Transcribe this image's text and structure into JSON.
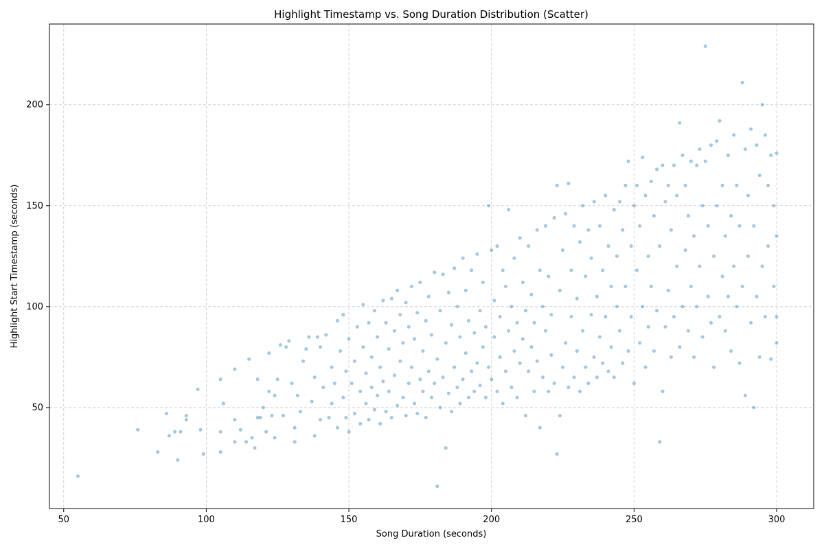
{
  "chart_data": {
    "type": "scatter",
    "title": "Highlight Timestamp vs. Song Duration Distribution (Scatter)",
    "xlabel": "Song Duration (seconds)",
    "ylabel": "Highlight Start Timestamp (seconds)",
    "xlim": [
      45,
      313
    ],
    "ylim": [
      0,
      240
    ],
    "xticks": [
      50,
      100,
      150,
      200,
      250,
      300
    ],
    "yticks": [
      50,
      100,
      150,
      200
    ],
    "grid": true,
    "color": "#1f77b4",
    "points": [
      [
        55,
        16
      ],
      [
        76,
        39
      ],
      [
        83,
        28
      ],
      [
        86,
        47
      ],
      [
        87,
        36
      ],
      [
        89,
        38
      ],
      [
        90,
        24
      ],
      [
        91,
        38
      ],
      [
        93,
        46
      ],
      [
        93,
        44
      ],
      [
        97,
        59
      ],
      [
        98,
        39
      ],
      [
        99,
        27
      ],
      [
        105,
        28
      ],
      [
        105,
        38
      ],
      [
        105,
        64
      ],
      [
        106,
        52
      ],
      [
        110,
        33
      ],
      [
        110,
        44
      ],
      [
        110,
        69
      ],
      [
        112,
        39
      ],
      [
        114,
        33
      ],
      [
        115,
        74
      ],
      [
        116,
        35
      ],
      [
        117,
        30
      ],
      [
        118,
        45
      ],
      [
        118,
        64
      ],
      [
        119,
        45
      ],
      [
        120,
        50
      ],
      [
        121,
        38
      ],
      [
        122,
        58
      ],
      [
        122,
        77
      ],
      [
        123,
        46
      ],
      [
        124,
        35
      ],
      [
        124,
        56
      ],
      [
        125,
        64
      ],
      [
        126,
        81
      ],
      [
        127,
        46
      ],
      [
        128,
        80
      ],
      [
        129,
        83
      ],
      [
        130,
        62
      ],
      [
        131,
        33
      ],
      [
        131,
        40
      ],
      [
        132,
        56
      ],
      [
        133,
        48
      ],
      [
        134,
        73
      ],
      [
        135,
        79
      ],
      [
        136,
        85
      ],
      [
        137,
        53
      ],
      [
        138,
        36
      ],
      [
        138,
        65
      ],
      [
        139,
        85
      ],
      [
        140,
        44
      ],
      [
        140,
        80
      ],
      [
        141,
        60
      ],
      [
        142,
        86
      ],
      [
        143,
        45
      ],
      [
        144,
        52
      ],
      [
        144,
        70
      ],
      [
        145,
        62
      ],
      [
        146,
        40
      ],
      [
        146,
        93
      ],
      [
        147,
        78
      ],
      [
        148,
        55
      ],
      [
        148,
        96
      ],
      [
        149,
        45
      ],
      [
        149,
        68
      ],
      [
        150,
        38
      ],
      [
        150,
        84
      ],
      [
        151,
        62
      ],
      [
        152,
        47
      ],
      [
        152,
        73
      ],
      [
        153,
        90
      ],
      [
        154,
        42
      ],
      [
        154,
        58
      ],
      [
        155,
        80
      ],
      [
        155,
        101
      ],
      [
        156,
        52
      ],
      [
        156,
        67
      ],
      [
        157,
        44
      ],
      [
        157,
        92
      ],
      [
        158,
        60
      ],
      [
        158,
        75
      ],
      [
        159,
        49
      ],
      [
        159,
        98
      ],
      [
        160,
        56
      ],
      [
        160,
        85
      ],
      [
        161,
        42
      ],
      [
        161,
        70
      ],
      [
        162,
        103
      ],
      [
        162,
        63
      ],
      [
        163,
        48
      ],
      [
        163,
        92
      ],
      [
        164,
        58
      ],
      [
        164,
        79
      ],
      [
        165,
        45
      ],
      [
        165,
        104
      ],
      [
        166,
        66
      ],
      [
        166,
        88
      ],
      [
        167,
        51
      ],
      [
        167,
        108
      ],
      [
        168,
        73
      ],
      [
        168,
        96
      ],
      [
        169,
        55
      ],
      [
        169,
        82
      ],
      [
        170,
        46
      ],
      [
        170,
        102
      ],
      [
        171,
        62
      ],
      [
        171,
        90
      ],
      [
        172,
        110
      ],
      [
        172,
        70
      ],
      [
        173,
        52
      ],
      [
        173,
        84
      ],
      [
        174,
        47
      ],
      [
        174,
        97
      ],
      [
        175,
        64
      ],
      [
        175,
        112
      ],
      [
        176,
        58
      ],
      [
        176,
        78
      ],
      [
        177,
        45
      ],
      [
        177,
        93
      ],
      [
        178,
        68
      ],
      [
        178,
        105
      ],
      [
        179,
        55
      ],
      [
        179,
        86
      ],
      [
        180,
        62
      ],
      [
        180,
        117
      ],
      [
        181,
        11
      ],
      [
        181,
        74
      ],
      [
        182,
        50
      ],
      [
        182,
        98
      ],
      [
        183,
        65
      ],
      [
        183,
        116
      ],
      [
        184,
        30
      ],
      [
        184,
        82
      ],
      [
        185,
        57
      ],
      [
        185,
        107
      ],
      [
        186,
        48
      ],
      [
        186,
        91
      ],
      [
        187,
        70
      ],
      [
        187,
        119
      ],
      [
        188,
        60
      ],
      [
        188,
        100
      ],
      [
        189,
        52
      ],
      [
        189,
        85
      ],
      [
        190,
        64
      ],
      [
        190,
        124
      ],
      [
        191,
        77
      ],
      [
        191,
        108
      ],
      [
        192,
        55
      ],
      [
        192,
        93
      ],
      [
        193,
        68
      ],
      [
        193,
        118
      ],
      [
        194,
        58
      ],
      [
        194,
        87
      ],
      [
        195,
        72
      ],
      [
        195,
        126
      ],
      [
        196,
        61
      ],
      [
        196,
        98
      ],
      [
        197,
        80
      ],
      [
        197,
        112
      ],
      [
        198,
        55
      ],
      [
        198,
        90
      ],
      [
        199,
        70
      ],
      [
        199,
        150
      ],
      [
        200,
        64
      ],
      [
        200,
        128
      ],
      [
        201,
        85
      ],
      [
        201,
        103
      ],
      [
        202,
        58
      ],
      [
        202,
        130
      ],
      [
        203,
        75
      ],
      [
        203,
        95
      ],
      [
        204,
        52
      ],
      [
        204,
        118
      ],
      [
        205,
        68
      ],
      [
        205,
        110
      ],
      [
        206,
        88
      ],
      [
        206,
        148
      ],
      [
        207,
        60
      ],
      [
        207,
        100
      ],
      [
        208,
        78
      ],
      [
        208,
        124
      ],
      [
        209,
        55
      ],
      [
        209,
        92
      ],
      [
        210,
        72
      ],
      [
        210,
        134
      ],
      [
        211,
        84
      ],
      [
        211,
        112
      ],
      [
        212,
        46
      ],
      [
        212,
        98
      ],
      [
        213,
        68
      ],
      [
        213,
        130
      ],
      [
        214,
        80
      ],
      [
        214,
        106
      ],
      [
        215,
        58
      ],
      [
        215,
        92
      ],
      [
        216,
        73
      ],
      [
        216,
        138
      ],
      [
        217,
        40
      ],
      [
        217,
        118
      ],
      [
        218,
        65
      ],
      [
        218,
        100
      ],
      [
        219,
        88
      ],
      [
        219,
        140
      ],
      [
        220,
        58
      ],
      [
        220,
        115
      ],
      [
        221,
        76
      ],
      [
        221,
        96
      ],
      [
        222,
        62
      ],
      [
        222,
        144
      ],
      [
        223,
        27
      ],
      [
        223,
        160
      ],
      [
        224,
        46
      ],
      [
        224,
        108
      ],
      [
        225,
        70
      ],
      [
        225,
        128
      ],
      [
        226,
        82
      ],
      [
        226,
        146
      ],
      [
        227,
        60
      ],
      [
        227,
        161
      ],
      [
        228,
        95
      ],
      [
        228,
        118
      ],
      [
        229,
        65
      ],
      [
        229,
        140
      ],
      [
        230,
        78
      ],
      [
        230,
        104
      ],
      [
        231,
        58
      ],
      [
        231,
        132
      ],
      [
        232,
        88
      ],
      [
        232,
        150
      ],
      [
        233,
        70
      ],
      [
        233,
        115
      ],
      [
        234,
        62
      ],
      [
        234,
        138
      ],
      [
        235,
        96
      ],
      [
        235,
        124
      ],
      [
        236,
        75
      ],
      [
        236,
        152
      ],
      [
        237,
        65
      ],
      [
        237,
        105
      ],
      [
        238,
        85
      ],
      [
        238,
        140
      ],
      [
        239,
        72
      ],
      [
        239,
        118
      ],
      [
        240,
        95
      ],
      [
        240,
        155
      ],
      [
        241,
        68
      ],
      [
        241,
        130
      ],
      [
        242,
        80
      ],
      [
        242,
        110
      ],
      [
        243,
        65
      ],
      [
        243,
        148
      ],
      [
        244,
        100
      ],
      [
        244,
        125
      ],
      [
        245,
        88
      ],
      [
        245,
        152
      ],
      [
        246,
        72
      ],
      [
        246,
        138
      ],
      [
        247,
        110
      ],
      [
        247,
        160
      ],
      [
        248,
        78
      ],
      [
        248,
        172
      ],
      [
        249,
        95
      ],
      [
        249,
        130
      ],
      [
        250,
        62
      ],
      [
        250,
        150
      ],
      [
        251,
        118
      ],
      [
        251,
        160
      ],
      [
        252,
        82
      ],
      [
        252,
        140
      ],
      [
        253,
        100
      ],
      [
        253,
        174
      ],
      [
        254,
        70
      ],
      [
        254,
        155
      ],
      [
        255,
        90
      ],
      [
        255,
        125
      ],
      [
        256,
        110
      ],
      [
        256,
        162
      ],
      [
        257,
        78
      ],
      [
        257,
        145
      ],
      [
        258,
        98
      ],
      [
        258,
        168
      ],
      [
        259,
        33
      ],
      [
        259,
        130
      ],
      [
        260,
        58
      ],
      [
        260,
        170
      ],
      [
        261,
        90
      ],
      [
        261,
        152
      ],
      [
        262,
        108
      ],
      [
        262,
        160
      ],
      [
        263,
        75
      ],
      [
        263,
        138
      ],
      [
        264,
        95
      ],
      [
        264,
        170
      ],
      [
        265,
        120
      ],
      [
        265,
        155
      ],
      [
        266,
        80
      ],
      [
        266,
        191
      ],
      [
        267,
        100
      ],
      [
        267,
        175
      ],
      [
        268,
        128
      ],
      [
        268,
        160
      ],
      [
        269,
        88
      ],
      [
        269,
        145
      ],
      [
        270,
        110
      ],
      [
        270,
        172
      ],
      [
        271,
        75
      ],
      [
        271,
        135
      ],
      [
        272,
        100
      ],
      [
        272,
        170
      ],
      [
        273,
        120
      ],
      [
        273,
        178
      ],
      [
        274,
        85
      ],
      [
        274,
        150
      ],
      [
        275,
        229
      ],
      [
        275,
        172
      ],
      [
        276,
        105
      ],
      [
        276,
        140
      ],
      [
        277,
        92
      ],
      [
        277,
        180
      ],
      [
        278,
        70
      ],
      [
        278,
        125
      ],
      [
        279,
        150
      ],
      [
        279,
        182
      ],
      [
        280,
        95
      ],
      [
        280,
        192
      ],
      [
        281,
        115
      ],
      [
        281,
        160
      ],
      [
        282,
        88
      ],
      [
        282,
        135
      ],
      [
        283,
        105
      ],
      [
        283,
        175
      ],
      [
        284,
        78
      ],
      [
        284,
        145
      ],
      [
        285,
        120
      ],
      [
        285,
        185
      ],
      [
        286,
        100
      ],
      [
        286,
        160
      ],
      [
        287,
        72
      ],
      [
        287,
        140
      ],
      [
        288,
        110
      ],
      [
        288,
        211
      ],
      [
        289,
        56
      ],
      [
        289,
        178
      ],
      [
        290,
        125
      ],
      [
        290,
        155
      ],
      [
        291,
        92
      ],
      [
        291,
        188
      ],
      [
        292,
        50
      ],
      [
        292,
        140
      ],
      [
        293,
        105
      ],
      [
        293,
        180
      ],
      [
        294,
        75
      ],
      [
        294,
        165
      ],
      [
        295,
        120
      ],
      [
        295,
        200
      ],
      [
        296,
        95
      ],
      [
        296,
        185
      ],
      [
        297,
        130
      ],
      [
        297,
        160
      ],
      [
        298,
        74
      ],
      [
        298,
        175
      ],
      [
        299,
        110
      ],
      [
        299,
        150
      ],
      [
        300,
        82
      ],
      [
        300,
        176
      ],
      [
        300,
        95
      ],
      [
        300,
        135
      ]
    ]
  }
}
